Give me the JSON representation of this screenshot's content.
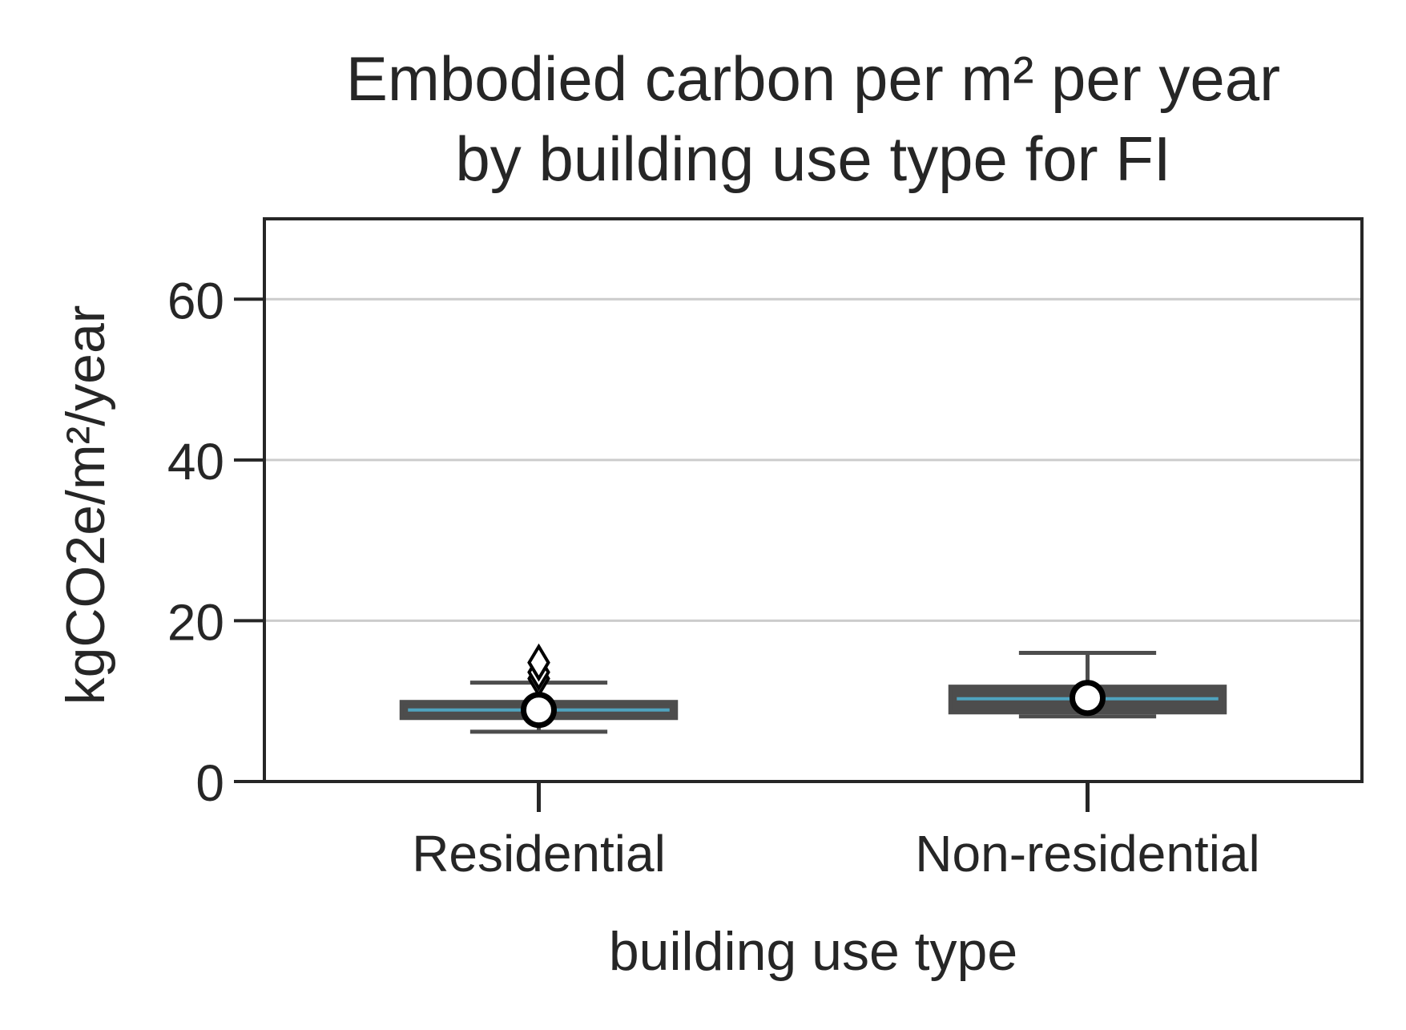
{
  "chart_data": {
    "type": "box",
    "title_lines": [
      "Embodied carbon per m² per year",
      "by building use type for FI"
    ],
    "xlabel": "building use type",
    "ylabel": "kgCO2e/m²/year",
    "ylim": [
      0,
      70
    ],
    "yticks": [
      0,
      20,
      40,
      60
    ],
    "ytick_labels": [
      "0",
      "20",
      "40",
      "60"
    ],
    "grid": "y",
    "categories": [
      "Residential",
      "Non-residential"
    ],
    "boxes": [
      {
        "category": "Residential",
        "whisker_low": 6.2,
        "q1": 7.9,
        "median": 8.9,
        "q3": 9.9,
        "whisker_high": 12.3,
        "mean": 8.9,
        "outliers": [
          12.8,
          13.6,
          14.8
        ]
      },
      {
        "category": "Non-residential",
        "whisker_low": 8.1,
        "q1": 8.6,
        "median": 10.3,
        "q3": 11.8,
        "whisker_high": 16.0,
        "mean": 10.4,
        "outliers": []
      }
    ],
    "colors": {
      "box_edge": "#4d4d4d",
      "median": "#4fa3bf",
      "grid": "#cccccc",
      "axis": "#262626"
    }
  }
}
